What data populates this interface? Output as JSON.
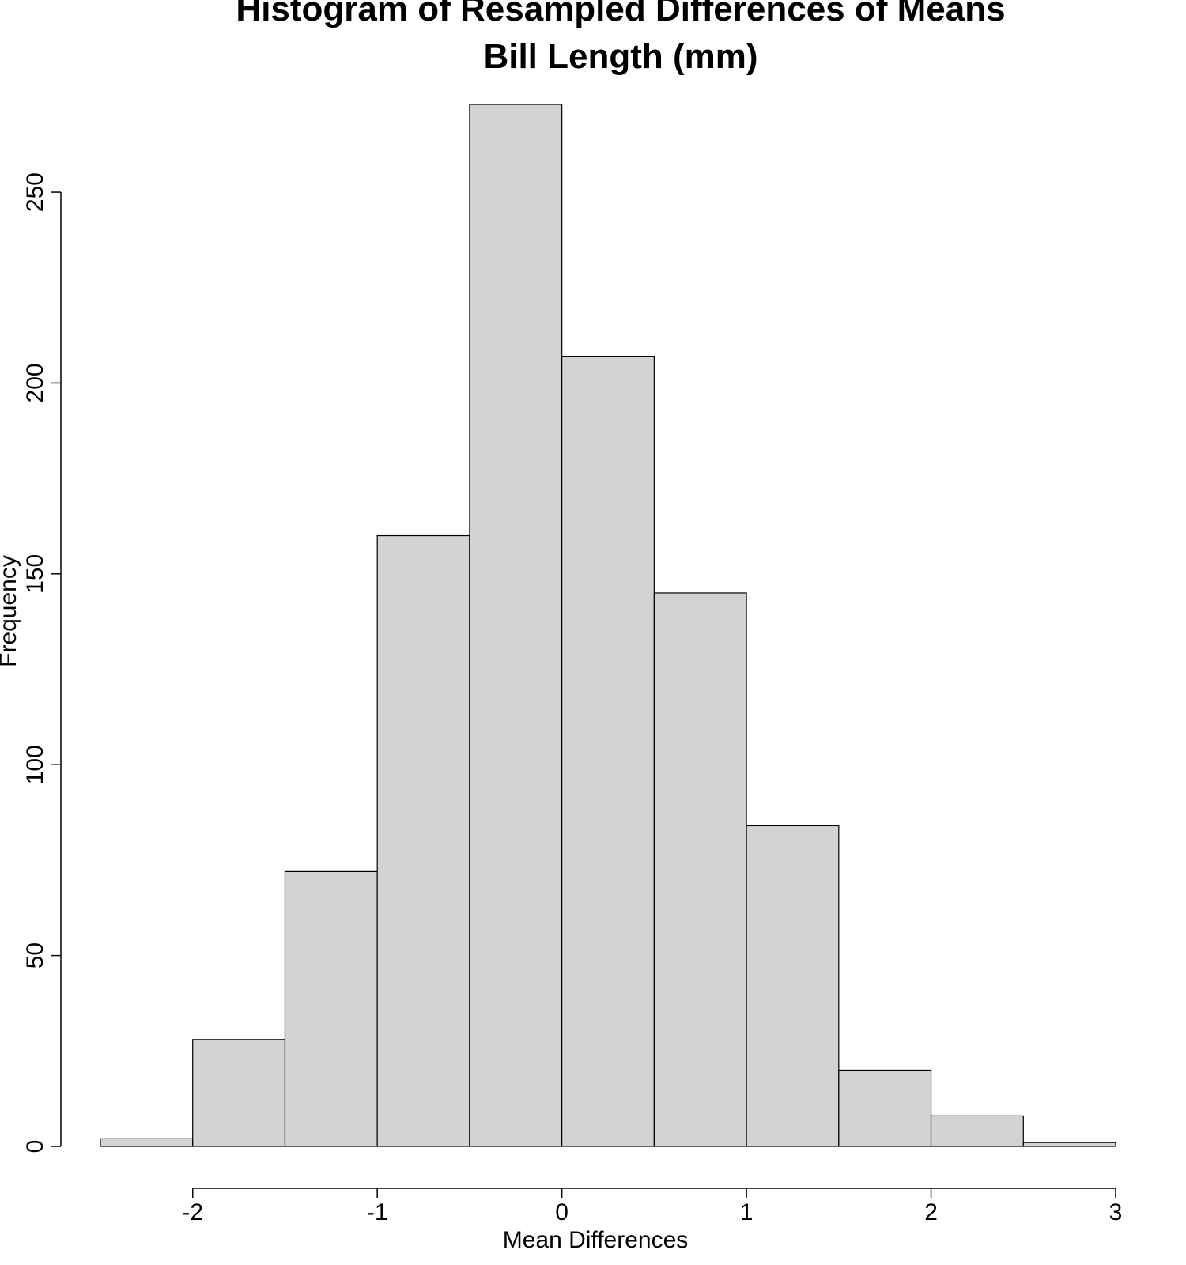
{
  "chart_data": {
    "type": "bar",
    "title_lines": [
      "Histogram of Resampled Differences of Means",
      "Bill Length (mm)"
    ],
    "xlabel": "Mean Differences",
    "ylabel": "Frequency",
    "bins": [
      {
        "start": -2.5,
        "end": -2.0,
        "count": 2
      },
      {
        "start": -2.0,
        "end": -1.5,
        "count": 28
      },
      {
        "start": -1.5,
        "end": -1.0,
        "count": 72
      },
      {
        "start": -1.0,
        "end": -0.5,
        "count": 160
      },
      {
        "start": -0.5,
        "end": 0.0,
        "count": 273
      },
      {
        "start": 0.0,
        "end": 0.5,
        "count": 207
      },
      {
        "start": 0.5,
        "end": 1.0,
        "count": 145
      },
      {
        "start": 1.0,
        "end": 1.5,
        "count": 84
      },
      {
        "start": 1.5,
        "end": 2.0,
        "count": 20
      },
      {
        "start": 2.0,
        "end": 2.5,
        "count": 8
      },
      {
        "start": 2.5,
        "end": 3.0,
        "count": 1
      }
    ],
    "x_ticks": [
      -2,
      -1,
      0,
      1,
      2,
      3
    ],
    "x_tick_labels": [
      "-2",
      "-1",
      "0",
      "1",
      "2",
      "3"
    ],
    "y_ticks": [
      0,
      50,
      100,
      150,
      200,
      250
    ],
    "y_tick_labels": [
      "0",
      "50",
      "100",
      "150",
      "200",
      "250"
    ],
    "xlim": [
      -2.5,
      3.0
    ],
    "ylim": [
      0,
      273
    ],
    "bar_color": "#d3d3d3",
    "grid": false,
    "legend": "none"
  }
}
